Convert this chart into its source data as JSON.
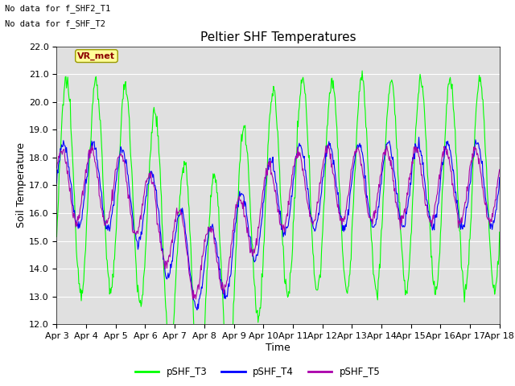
{
  "title": "Peltier SHF Temperatures",
  "xlabel": "Time",
  "ylabel": "Soil Temperature",
  "ylim": [
    12.0,
    22.0
  ],
  "yticks": [
    12.0,
    13.0,
    14.0,
    15.0,
    16.0,
    17.0,
    18.0,
    19.0,
    20.0,
    21.0,
    22.0
  ],
  "xtick_labels": [
    "Apr 3",
    "Apr 4",
    "Apr 5",
    "Apr 6",
    "Apr 7",
    "Apr 8",
    "Apr 9",
    "Apr 10",
    "Apr 11",
    "Apr 12",
    "Apr 13",
    "Apr 14",
    "Apr 15",
    "Apr 16",
    "Apr 17",
    "Apr 18"
  ],
  "no_data_text": [
    "No data for f_SHF2_T1",
    "No data for f_SHF_T2"
  ],
  "vr_met_label": "VR_met",
  "color_T3": "#00FF00",
  "color_T4": "#0000FF",
  "color_T5": "#AA00AA",
  "bg_color": "#E0E0E0",
  "legend_labels": [
    "pSHF_T3",
    "pSHF_T4",
    "pSHF_T5"
  ],
  "title_fontsize": 11,
  "axis_label_fontsize": 9,
  "tick_fontsize": 8,
  "n_points": 720
}
